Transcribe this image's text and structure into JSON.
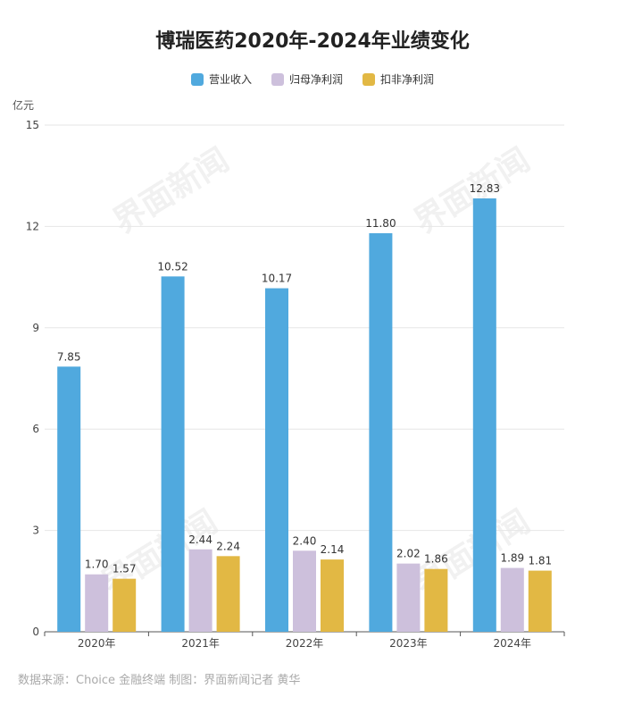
{
  "colors": {
    "revenue": "#50a9de",
    "net_profit": "#cdc0dc",
    "deducted_profit": "#e2b844",
    "grid": "#e6e6e6",
    "axis": "#555555",
    "text": "#333333"
  },
  "watermark": "界面新闻",
  "source_note": "数据来源：Choice 金融终端 制图：界面新闻记者 黄华",
  "chart_data": {
    "type": "bar",
    "title": "博瑞医药2020年-2024年业绩变化",
    "ylabel": "亿元",
    "xlabel": "",
    "categories": [
      "2020年",
      "2021年",
      "2022年",
      "2023年",
      "2024年"
    ],
    "ylim": [
      0,
      15
    ],
    "yticks": [
      0,
      3,
      6,
      9,
      12,
      15
    ],
    "grid": true,
    "legend_position": "top-center",
    "series": [
      {
        "name": "营业收入",
        "values": [
          7.85,
          10.52,
          10.17,
          11.8,
          12.83
        ],
        "labels": [
          "7.85",
          "10.52",
          "10.17",
          "11.80",
          "12.83"
        ]
      },
      {
        "name": "归母净利润",
        "values": [
          1.7,
          2.44,
          2.4,
          2.02,
          1.89
        ],
        "labels": [
          "1.70",
          "2.44",
          "2.40",
          "2.02",
          "1.89"
        ]
      },
      {
        "name": "扣非净利润",
        "values": [
          1.57,
          2.24,
          2.14,
          1.86,
          1.81
        ],
        "labels": [
          "1.57",
          "2.24",
          "2.14",
          "1.86",
          "1.81"
        ]
      }
    ]
  }
}
